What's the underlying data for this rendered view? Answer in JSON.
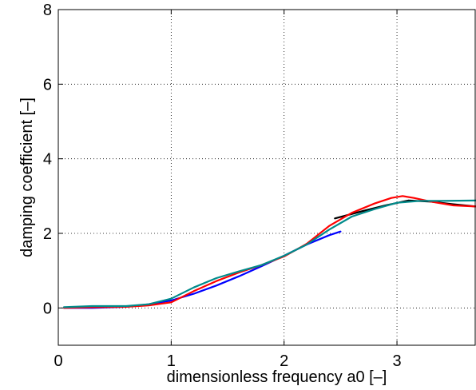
{
  "chart_data": {
    "type": "line",
    "xlabel": "dimensionless frequency a0 [–]",
    "ylabel": "damping coefficient [–]",
    "xlim": [
      0,
      3.7
    ],
    "ylim": [
      -1,
      8
    ],
    "xticks": [
      "0",
      "1",
      "2",
      "3"
    ],
    "yticks": [
      "0",
      "2",
      "4",
      "6",
      "8"
    ],
    "xtick_values": [
      0,
      1,
      2,
      3
    ],
    "ytick_values": [
      0,
      2,
      4,
      6,
      8
    ],
    "grid": true,
    "series": [
      {
        "color": "#0000ff",
        "x": [
          0.05,
          0.3,
          0.6,
          0.8,
          1.0,
          1.2,
          1.4,
          1.6,
          1.8,
          2.0,
          2.2,
          2.4,
          2.5
        ],
        "y": [
          0.0,
          0.0,
          0.03,
          0.1,
          0.2,
          0.38,
          0.6,
          0.85,
          1.12,
          1.4,
          1.7,
          1.95,
          2.05
        ]
      },
      {
        "color": "#000000",
        "x": [
          2.45,
          2.7,
          2.9,
          3.1,
          3.3,
          3.5,
          3.7
        ],
        "y": [
          2.4,
          2.6,
          2.75,
          2.88,
          2.85,
          2.78,
          2.72
        ]
      },
      {
        "color": "#ff0000",
        "x": [
          0.05,
          0.3,
          0.6,
          0.8,
          1.0,
          1.2,
          1.4,
          1.6,
          1.8,
          2.0,
          2.2,
          2.4,
          2.6,
          2.8,
          2.95,
          3.05,
          3.15,
          3.3,
          3.5,
          3.7
        ],
        "y": [
          0.0,
          0.02,
          0.03,
          0.07,
          0.15,
          0.45,
          0.72,
          0.95,
          1.15,
          1.38,
          1.72,
          2.2,
          2.55,
          2.8,
          2.95,
          3.0,
          2.95,
          2.85,
          2.75,
          2.72
        ]
      },
      {
        "color": "#008b8b",
        "x": [
          0.05,
          0.3,
          0.6,
          0.8,
          1.0,
          1.2,
          1.4,
          1.6,
          1.8,
          2.0,
          2.2,
          2.4,
          2.6,
          2.8,
          3.0,
          3.2,
          3.4,
          3.7
        ],
        "y": [
          0.02,
          0.05,
          0.05,
          0.1,
          0.25,
          0.55,
          0.8,
          0.98,
          1.15,
          1.4,
          1.7,
          2.1,
          2.45,
          2.65,
          2.82,
          2.87,
          2.87,
          2.88
        ]
      }
    ]
  }
}
